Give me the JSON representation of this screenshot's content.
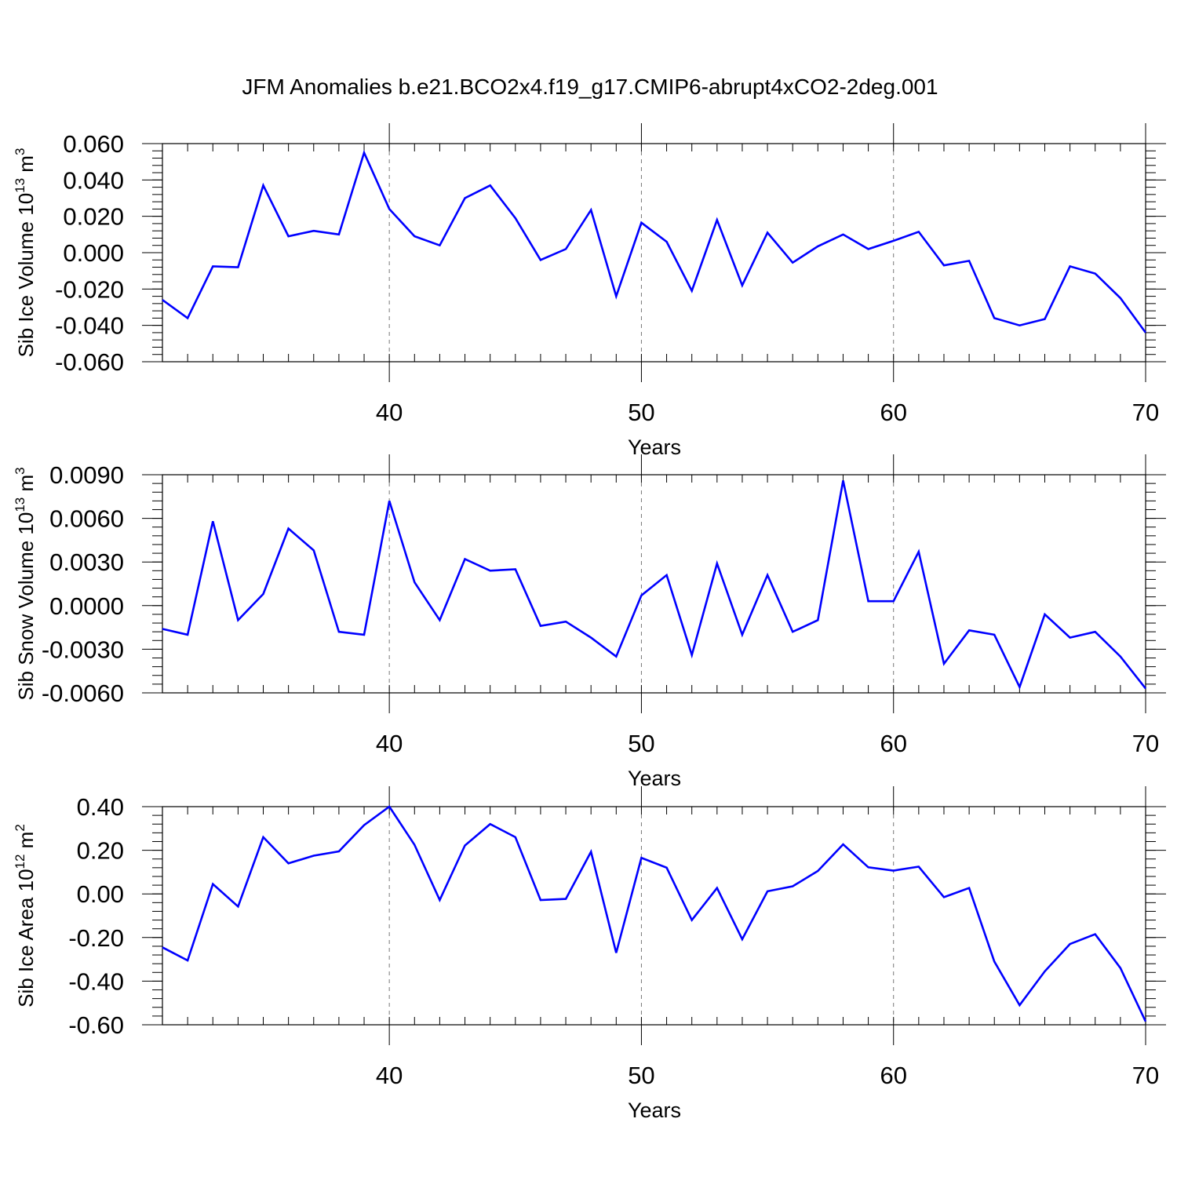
{
  "title": "JFM Anomalies b.e21.BCO2x4.f19_g17.CMIP6-abrupt4xCO2-2deg.001",
  "colors": {
    "line": "#0000ff",
    "axes": "#000000",
    "grid": "#808080"
  },
  "chart_data": [
    {
      "type": "line",
      "ylabel": {
        "main": "Sib Ice Volume 10",
        "sup": "13",
        "unit": " m",
        "unit_sup": "3"
      },
      "xlabel": "Years",
      "xlim": [
        31,
        70
      ],
      "ylim": [
        -0.06,
        0.06
      ],
      "xticks": [
        40,
        50,
        60,
        70
      ],
      "xtick_labels": [
        "40",
        "50",
        "60",
        "70"
      ],
      "yticks": [
        -0.06,
        -0.04,
        -0.02,
        0.0,
        0.02,
        0.04,
        0.06
      ],
      "ytick_labels": [
        "-0.060",
        "-0.040",
        "-0.020",
        "0.000",
        "0.020",
        "0.040",
        "0.060"
      ],
      "grid": "vertical dashed at major x ticks",
      "series": [
        {
          "x": [
            31,
            32,
            33,
            34,
            35,
            36,
            37,
            38,
            39,
            40,
            41,
            42,
            43,
            44,
            45,
            46,
            47,
            48,
            49,
            50,
            51,
            52,
            53,
            54,
            55,
            56,
            57,
            58,
            59,
            60,
            61,
            62,
            63,
            64,
            65,
            66,
            67,
            68,
            69,
            70
          ],
          "values": [
            -0.026,
            -0.036,
            -0.0075,
            -0.008,
            0.037,
            0.009,
            0.012,
            0.01,
            0.055,
            0.024,
            0.009,
            0.004,
            0.03,
            0.037,
            0.019,
            -0.004,
            0.002,
            0.0235,
            -0.024,
            0.0165,
            0.006,
            -0.021,
            0.018,
            -0.018,
            0.011,
            -0.0055,
            0.0035,
            0.01,
            0.002,
            0.0065,
            0.0115,
            -0.007,
            -0.0045,
            -0.036,
            -0.04,
            -0.0365,
            -0.0075,
            -0.0115,
            -0.025,
            -0.044
          ]
        }
      ]
    },
    {
      "type": "line",
      "ylabel": {
        "main": "Sib Snow Volume 10",
        "sup": "13",
        "unit": " m",
        "unit_sup": "3"
      },
      "xlabel": "Years",
      "xlim": [
        31,
        70
      ],
      "ylim": [
        -0.006,
        0.009
      ],
      "xticks": [
        40,
        50,
        60,
        70
      ],
      "xtick_labels": [
        "40",
        "50",
        "60",
        "70"
      ],
      "yticks": [
        -0.006,
        -0.003,
        0.0,
        0.003,
        0.006,
        0.009
      ],
      "ytick_labels": [
        "-0.0060",
        "-0.0030",
        "0.0000",
        "0.0030",
        "0.0060",
        "0.0090"
      ],
      "grid": "vertical dashed at major x ticks",
      "series": [
        {
          "x": [
            31,
            32,
            33,
            34,
            35,
            36,
            37,
            38,
            39,
            40,
            41,
            42,
            43,
            44,
            45,
            46,
            47,
            48,
            49,
            50,
            51,
            52,
            53,
            54,
            55,
            56,
            57,
            58,
            59,
            60,
            61,
            62,
            63,
            64,
            65,
            66,
            67,
            68,
            69,
            70
          ],
          "values": [
            -0.0016,
            -0.002,
            0.0058,
            -0.001,
            0.0008,
            0.0053,
            0.0038,
            -0.0018,
            -0.002,
            0.0072,
            0.0016,
            -0.001,
            0.0032,
            0.0024,
            0.0025,
            -0.0014,
            -0.0011,
            -0.0022,
            -0.0035,
            0.0007,
            0.0021,
            -0.0034,
            0.0029,
            -0.002,
            0.0021,
            -0.0018,
            -0.001,
            0.0086,
            0.0003,
            0.0003,
            0.0037,
            -0.004,
            -0.0017,
            -0.002,
            -0.0056,
            -0.0006,
            -0.0022,
            -0.0018,
            -0.0035,
            -0.0057
          ]
        }
      ]
    },
    {
      "type": "line",
      "ylabel": {
        "main": "Sib Ice Area 10",
        "sup": "12",
        "unit": " m",
        "unit_sup": "2"
      },
      "xlabel": "Years",
      "xlim": [
        31,
        70
      ],
      "ylim": [
        -0.6,
        0.4
      ],
      "xticks": [
        40,
        50,
        60,
        70
      ],
      "xtick_labels": [
        "40",
        "50",
        "60",
        "70"
      ],
      "yticks": [
        -0.6,
        -0.4,
        -0.2,
        0.0,
        0.2,
        0.4
      ],
      "ytick_labels": [
        "-0.60",
        "-0.40",
        "-0.20",
        "0.00",
        "0.20",
        "0.40"
      ],
      "grid": "vertical dashed at major x ticks",
      "series": [
        {
          "x": [
            31,
            32,
            33,
            34,
            35,
            36,
            37,
            38,
            39,
            40,
            41,
            42,
            43,
            44,
            45,
            46,
            47,
            48,
            49,
            50,
            51,
            52,
            53,
            54,
            55,
            56,
            57,
            58,
            59,
            60,
            61,
            62,
            63,
            64,
            65,
            66,
            67,
            68,
            69,
            70
          ],
          "values": [
            -0.245,
            -0.305,
            0.045,
            -0.058,
            0.26,
            0.14,
            0.175,
            0.195,
            0.315,
            0.4,
            0.225,
            -0.028,
            0.222,
            0.32,
            0.26,
            -0.028,
            -0.023,
            0.193,
            -0.27,
            0.165,
            0.12,
            -0.12,
            0.027,
            -0.208,
            0.012,
            0.035,
            0.105,
            0.227,
            0.122,
            0.107,
            0.125,
            -0.015,
            0.027,
            -0.31,
            -0.51,
            -0.355,
            -0.23,
            -0.185,
            -0.34,
            -0.585
          ]
        }
      ]
    }
  ]
}
